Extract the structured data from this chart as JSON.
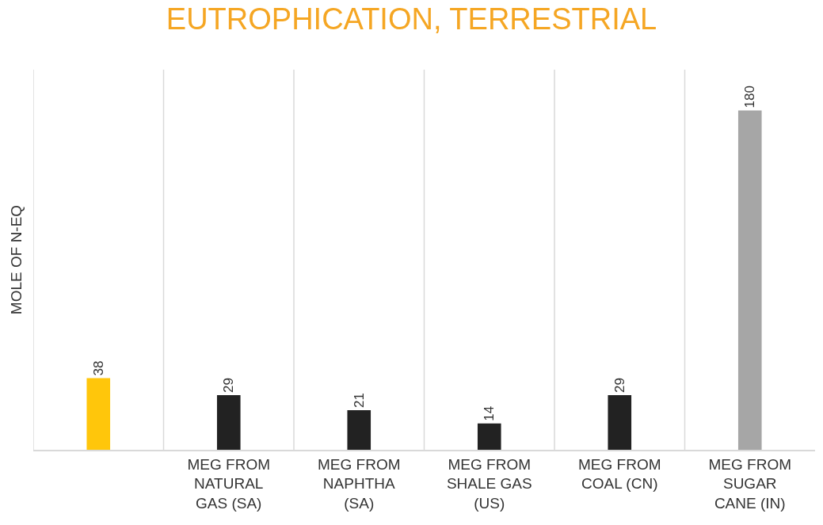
{
  "chart_data": {
    "type": "bar",
    "title": "EUTROPHICATION, TERRESTRIAL",
    "ylabel": "MOLE OF N-EQ",
    "categories": [
      null,
      "MEG FROM NATURAL GAS (SA)",
      "MEG FROM NAPHTHA (SA)",
      "MEG FROM SHALE GAS (US)",
      "MEG FROM COAL (CN)",
      "MEG FROM SUGAR CANE (IN)"
    ],
    "values": [
      38,
      29,
      21,
      14,
      29,
      180
    ],
    "colors": [
      "#ffc60b",
      "#222222",
      "#222222",
      "#222222",
      "#222222",
      "#a6a6a6"
    ],
    "data_labels": true,
    "grid": "x"
  }
}
